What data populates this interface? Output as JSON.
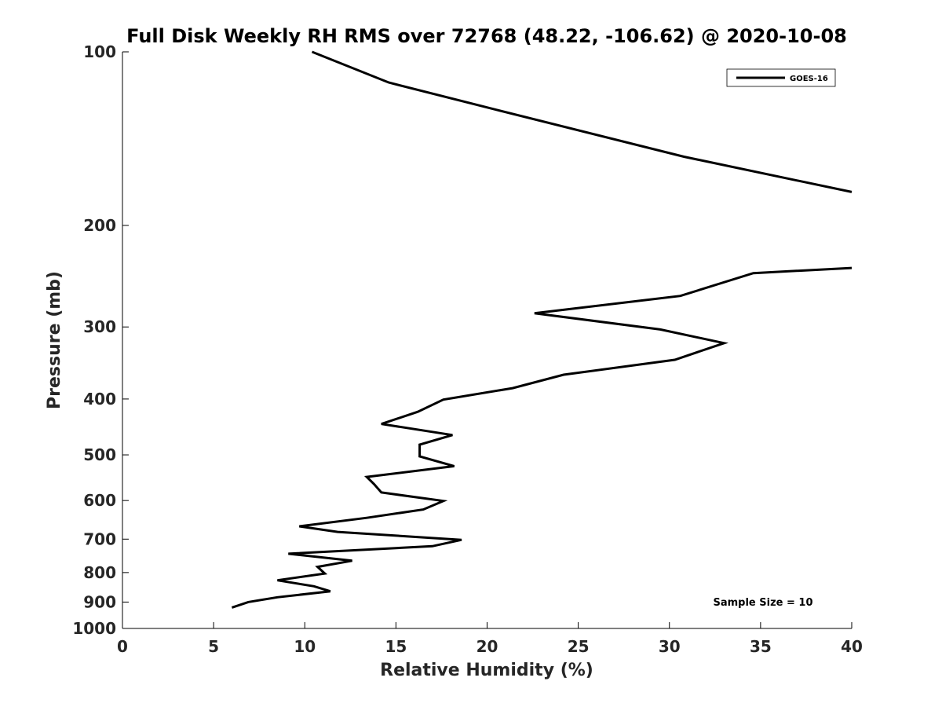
{
  "chart_data": {
    "type": "line",
    "title": "Full Disk Weekly RH RMS over 72768 (48.22, -106.62) @ 2020-10-08",
    "xlabel": "Relative Humidity (%)",
    "ylabel": "Pressure (mb)",
    "xlim": [
      0,
      40
    ],
    "ylim": [
      100,
      1000
    ],
    "y_scale": "log",
    "y_reversed": true,
    "x_ticks": [
      0,
      5,
      10,
      15,
      20,
      25,
      30,
      35,
      40
    ],
    "y_ticks": [
      100,
      200,
      300,
      400,
      500,
      600,
      700,
      800,
      900,
      1000
    ],
    "grid": false,
    "legend_position": "top-right",
    "annotation": "Sample Size = 10",
    "series": [
      {
        "name": "GOES-16",
        "color": "#000000",
        "segments": [
          [
            {
              "x": 10.4,
              "y": 100
            },
            {
              "x": 14.6,
              "y": 113
            },
            {
              "x": 20.5,
              "y": 126
            },
            {
              "x": 30.8,
              "y": 152
            },
            {
              "x": 40.0,
              "y": 175
            }
          ],
          [
            {
              "x": 40.0,
              "y": 237
            },
            {
              "x": 34.6,
              "y": 242
            },
            {
              "x": 30.6,
              "y": 265
            },
            {
              "x": 22.6,
              "y": 284
            },
            {
              "x": 29.5,
              "y": 303
            },
            {
              "x": 33.0,
              "y": 320
            },
            {
              "x": 30.3,
              "y": 342
            },
            {
              "x": 24.2,
              "y": 363
            },
            {
              "x": 21.4,
              "y": 383
            },
            {
              "x": 17.6,
              "y": 401
            },
            {
              "x": 16.2,
              "y": 421
            },
            {
              "x": 14.2,
              "y": 442
            },
            {
              "x": 18.1,
              "y": 462
            },
            {
              "x": 16.3,
              "y": 480
            },
            {
              "x": 16.3,
              "y": 503
            },
            {
              "x": 18.2,
              "y": 523
            },
            {
              "x": 13.4,
              "y": 546
            },
            {
              "x": 13.8,
              "y": 562
            },
            {
              "x": 14.2,
              "y": 581
            },
            {
              "x": 17.6,
              "y": 601
            },
            {
              "x": 16.5,
              "y": 622
            },
            {
              "x": 13.4,
              "y": 643
            },
            {
              "x": 9.7,
              "y": 665
            },
            {
              "x": 11.8,
              "y": 680
            },
            {
              "x": 18.6,
              "y": 702
            },
            {
              "x": 17.0,
              "y": 720
            },
            {
              "x": 9.1,
              "y": 742
            },
            {
              "x": 12.6,
              "y": 763
            },
            {
              "x": 10.7,
              "y": 782
            },
            {
              "x": 11.1,
              "y": 803
            },
            {
              "x": 8.5,
              "y": 825
            },
            {
              "x": 10.5,
              "y": 845
            },
            {
              "x": 11.4,
              "y": 862
            },
            {
              "x": 8.5,
              "y": 883
            },
            {
              "x": 6.9,
              "y": 900
            },
            {
              "x": 6.0,
              "y": 920
            }
          ]
        ]
      }
    ]
  }
}
